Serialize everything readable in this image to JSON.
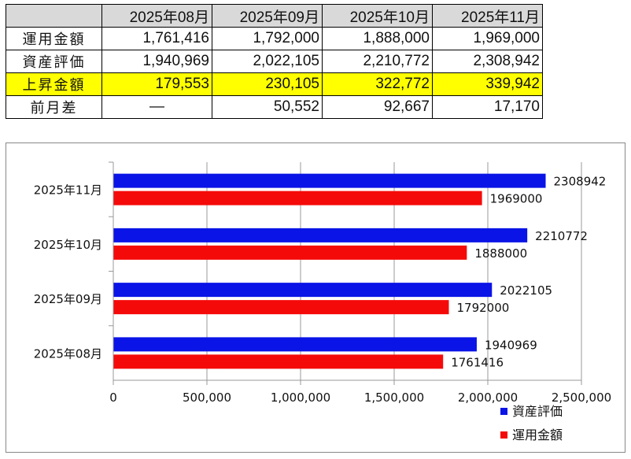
{
  "table": {
    "headers": [
      "",
      "2025年08月",
      "2025年09月",
      "2025年10月",
      "2025年11月"
    ],
    "rows": [
      {
        "label": "運用金額",
        "values": [
          "1,761,416",
          "1,792,000",
          "1,888,000",
          "1,969,000"
        ]
      },
      {
        "label": "資産評価",
        "values": [
          "1,940,969",
          "2,022,105",
          "2,210,772",
          "2,308,942"
        ]
      },
      {
        "label": "上昇金額",
        "values": [
          "179,553",
          "230,105",
          "322,772",
          "339,942"
        ]
      },
      {
        "label": "前月差",
        "values": [
          "—",
          "50,552",
          "92,667",
          "17,170"
        ]
      }
    ]
  },
  "chart_data": {
    "type": "bar",
    "orientation": "horizontal",
    "categories": [
      "2025年08月",
      "2025年09月",
      "2025年10月",
      "2025年11月"
    ],
    "series": [
      {
        "name": "資産評価",
        "color": "#0a14e6",
        "values": [
          1940969,
          2022105,
          2210772,
          2308942
        ]
      },
      {
        "name": "運用金額",
        "color": "#f50a0a",
        "values": [
          1761416,
          1792000,
          1888000,
          1969000
        ]
      }
    ],
    "xlim": [
      0,
      2500000
    ],
    "xticks": [
      0,
      500000,
      1000000,
      1500000,
      2000000,
      2500000
    ],
    "xtick_labels": [
      "0",
      "500,000",
      "1,000,000",
      "1,500,000",
      "2,000,000",
      "2,500,000"
    ],
    "grid": true,
    "legend": "bottom-right",
    "data_labels": true
  }
}
